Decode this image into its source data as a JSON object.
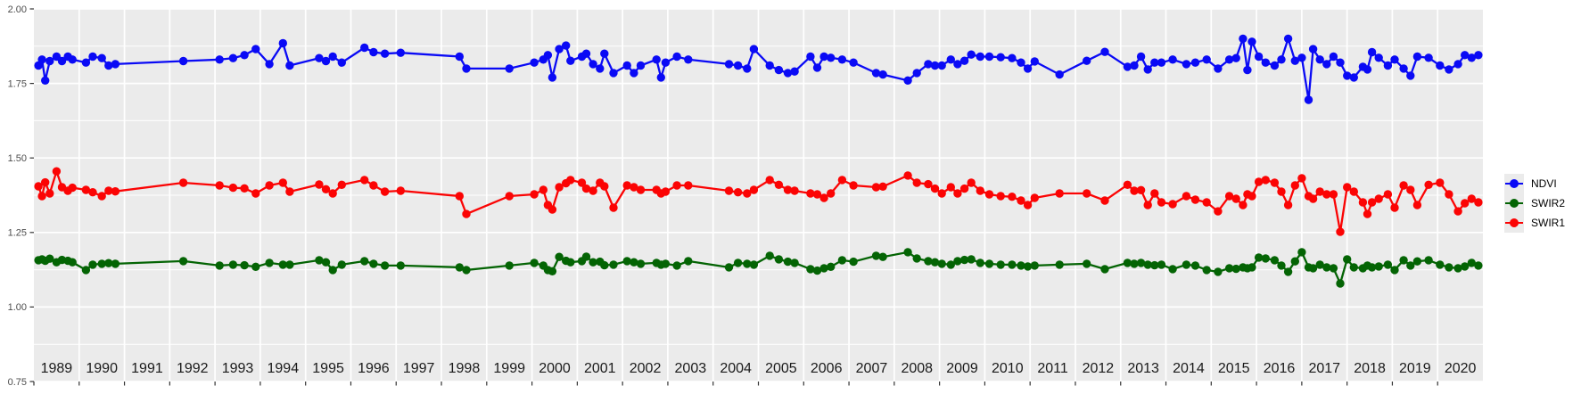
{
  "chart_data": {
    "type": "line",
    "x_domain": [
      1989,
      2021
    ],
    "ylim": [
      0.75,
      2.0
    ],
    "y_major_ticks": [
      0.75,
      1.0,
      1.25,
      1.5,
      1.75,
      2.0
    ],
    "y_tick_labels": [
      "0.75",
      "1.00",
      "1.25",
      "1.50",
      "1.75",
      "2.00"
    ],
    "y_minor_ticks": [
      0.875,
      1.125,
      1.375,
      1.625,
      1.875
    ],
    "x_year_labels": [
      "1989",
      "1990",
      "1991",
      "1992",
      "1993",
      "1994",
      "1995",
      "1996",
      "1997",
      "1998",
      "1999",
      "2000",
      "2001",
      "2002",
      "2003",
      "2004",
      "2005",
      "2006",
      "2007",
      "2008",
      "2009",
      "2010",
      "2011",
      "2012",
      "2013",
      "2014",
      "2015",
      "2016",
      "2017",
      "2018",
      "2019",
      "2020"
    ],
    "legend_position": "right",
    "panel_bg": "#ebebeb",
    "grid_color": "#ffffff",
    "axis_text_color": "#4d4d4d",
    "x_label_color": "#1a1a1a",
    "tick_color": "#333333",
    "x": [
      1989.1,
      1989.18,
      1989.25,
      1989.35,
      1989.5,
      1989.62,
      1989.75,
      1989.85,
      1990.15,
      1990.3,
      1990.5,
      1990.65,
      1990.8,
      1992.3,
      1993.1,
      1993.4,
      1993.65,
      1993.9,
      1994.2,
      1994.5,
      1994.65,
      1995.3,
      1995.45,
      1995.6,
      1995.8,
      1996.3,
      1996.5,
      1996.75,
      1997.1,
      1998.4,
      1998.55,
      1999.5,
      2000.05,
      2000.25,
      2000.35,
      2000.45,
      2000.6,
      2000.75,
      2000.85,
      2001.1,
      2001.2,
      2001.35,
      2001.5,
      2001.6,
      2001.8,
      2002.1,
      2002.25,
      2002.4,
      2002.75,
      2002.85,
      2002.95,
      2003.2,
      2003.45,
      2004.35,
      2004.55,
      2004.75,
      2004.9,
      2005.25,
      2005.45,
      2005.65,
      2005.8,
      2006.15,
      2006.3,
      2006.45,
      2006.6,
      2006.85,
      2007.1,
      2007.6,
      2007.75,
      2008.3,
      2008.5,
      2008.75,
      2008.9,
      2009.05,
      2009.25,
      2009.4,
      2009.55,
      2009.7,
      2009.9,
      2010.1,
      2010.35,
      2010.6,
      2010.8,
      2010.95,
      2011.1,
      2011.65,
      2012.25,
      2012.65,
      2013.15,
      2013.3,
      2013.45,
      2013.6,
      2013.75,
      2013.9,
      2014.15,
      2014.45,
      2014.65,
      2014.9,
      2015.15,
      2015.4,
      2015.55,
      2015.7,
      2015.8,
      2015.9,
      2016.05,
      2016.2,
      2016.4,
      2016.55,
      2016.7,
      2016.85,
      2017.0,
      2017.15,
      2017.25,
      2017.4,
      2017.55,
      2017.7,
      2017.85,
      2018.0,
      2018.15,
      2018.35,
      2018.45,
      2018.55,
      2018.7,
      2018.9,
      2019.05,
      2019.25,
      2019.4,
      2019.55,
      2019.8,
      2020.05,
      2020.25,
      2020.45,
      2020.6,
      2020.75,
      2020.9
    ],
    "series": [
      {
        "name": "NDVI",
        "color": "#0a0af5",
        "values": [
          1.81,
          1.83,
          1.76,
          1.825,
          1.84,
          1.825,
          1.84,
          1.83,
          1.82,
          1.84,
          1.835,
          1.81,
          1.815,
          1.825,
          1.83,
          1.835,
          1.845,
          1.865,
          1.815,
          1.885,
          1.81,
          1.835,
          1.825,
          1.84,
          1.82,
          1.87,
          1.855,
          1.85,
          1.853,
          1.84,
          1.8,
          1.8,
          1.82,
          1.83,
          1.845,
          1.77,
          1.865,
          1.877,
          1.826,
          1.84,
          1.85,
          1.815,
          1.8,
          1.85,
          1.785,
          1.81,
          1.785,
          1.81,
          1.83,
          1.77,
          1.82,
          1.84,
          1.83,
          1.815,
          1.81,
          1.8,
          1.865,
          1.81,
          1.795,
          1.785,
          1.79,
          1.84,
          1.803,
          1.84,
          1.836,
          1.83,
          1.82,
          1.785,
          1.78,
          1.76,
          1.785,
          1.815,
          1.81,
          1.81,
          1.83,
          1.815,
          1.826,
          1.847,
          1.84,
          1.84,
          1.838,
          1.835,
          1.82,
          1.8,
          1.824,
          1.78,
          1.826,
          1.856,
          1.806,
          1.81,
          1.84,
          1.797,
          1.82,
          1.82,
          1.83,
          1.815,
          1.82,
          1.83,
          1.8,
          1.83,
          1.835,
          1.9,
          1.795,
          1.89,
          1.84,
          1.82,
          1.81,
          1.83,
          1.9,
          1.826,
          1.836,
          1.695,
          1.865,
          1.83,
          1.815,
          1.84,
          1.82,
          1.776,
          1.77,
          1.806,
          1.797,
          1.855,
          1.836,
          1.81,
          1.83,
          1.8,
          1.776,
          1.84,
          1.836,
          1.81,
          1.797,
          1.815,
          1.845,
          1.836,
          1.845
        ]
      },
      {
        "name": "SWIR2",
        "color": "#046404",
        "values": [
          1.157,
          1.16,
          1.155,
          1.162,
          1.15,
          1.158,
          1.155,
          1.15,
          1.124,
          1.142,
          1.145,
          1.147,
          1.145,
          1.154,
          1.139,
          1.142,
          1.14,
          1.135,
          1.148,
          1.142,
          1.142,
          1.157,
          1.15,
          1.124,
          1.142,
          1.154,
          1.145,
          1.139,
          1.139,
          1.133,
          1.124,
          1.139,
          1.148,
          1.139,
          1.124,
          1.12,
          1.168,
          1.155,
          1.15,
          1.154,
          1.169,
          1.15,
          1.152,
          1.14,
          1.142,
          1.154,
          1.15,
          1.145,
          1.148,
          1.142,
          1.145,
          1.139,
          1.154,
          1.133,
          1.148,
          1.145,
          1.142,
          1.172,
          1.16,
          1.152,
          1.148,
          1.127,
          1.122,
          1.13,
          1.135,
          1.157,
          1.152,
          1.172,
          1.168,
          1.184,
          1.163,
          1.154,
          1.15,
          1.145,
          1.142,
          1.154,
          1.158,
          1.16,
          1.148,
          1.145,
          1.142,
          1.142,
          1.139,
          1.136,
          1.139,
          1.142,
          1.145,
          1.127,
          1.148,
          1.145,
          1.148,
          1.142,
          1.14,
          1.142,
          1.127,
          1.142,
          1.139,
          1.124,
          1.118,
          1.13,
          1.128,
          1.133,
          1.13,
          1.133,
          1.166,
          1.163,
          1.157,
          1.139,
          1.118,
          1.153,
          1.184,
          1.133,
          1.13,
          1.142,
          1.133,
          1.13,
          1.079,
          1.16,
          1.133,
          1.13,
          1.139,
          1.133,
          1.136,
          1.142,
          1.124,
          1.157,
          1.139,
          1.153,
          1.157,
          1.142,
          1.133,
          1.13,
          1.136,
          1.148,
          1.139
        ]
      },
      {
        "name": "SWIR1",
        "color": "#fb0404",
        "values": [
          1.405,
          1.372,
          1.418,
          1.381,
          1.455,
          1.402,
          1.39,
          1.4,
          1.393,
          1.385,
          1.372,
          1.39,
          1.388,
          1.417,
          1.408,
          1.4,
          1.398,
          1.381,
          1.408,
          1.417,
          1.387,
          1.411,
          1.395,
          1.381,
          1.41,
          1.426,
          1.408,
          1.387,
          1.39,
          1.372,
          1.312,
          1.372,
          1.378,
          1.393,
          1.342,
          1.327,
          1.402,
          1.415,
          1.426,
          1.417,
          1.397,
          1.39,
          1.417,
          1.405,
          1.333,
          1.408,
          1.402,
          1.393,
          1.393,
          1.381,
          1.387,
          1.408,
          1.408,
          1.39,
          1.385,
          1.381,
          1.393,
          1.426,
          1.41,
          1.393,
          1.39,
          1.381,
          1.378,
          1.366,
          1.381,
          1.426,
          1.408,
          1.402,
          1.404,
          1.441,
          1.417,
          1.412,
          1.397,
          1.381,
          1.402,
          1.381,
          1.397,
          1.417,
          1.39,
          1.378,
          1.372,
          1.37,
          1.357,
          1.342,
          1.366,
          1.381,
          1.381,
          1.357,
          1.41,
          1.39,
          1.392,
          1.342,
          1.381,
          1.351,
          1.345,
          1.372,
          1.36,
          1.351,
          1.321,
          1.372,
          1.363,
          1.342,
          1.378,
          1.372,
          1.42,
          1.426,
          1.417,
          1.387,
          1.342,
          1.408,
          1.432,
          1.372,
          1.363,
          1.387,
          1.378,
          1.378,
          1.252,
          1.402,
          1.387,
          1.351,
          1.312,
          1.351,
          1.363,
          1.378,
          1.333,
          1.408,
          1.393,
          1.342,
          1.41,
          1.417,
          1.378,
          1.321,
          1.348,
          1.363,
          1.351
        ]
      }
    ]
  }
}
